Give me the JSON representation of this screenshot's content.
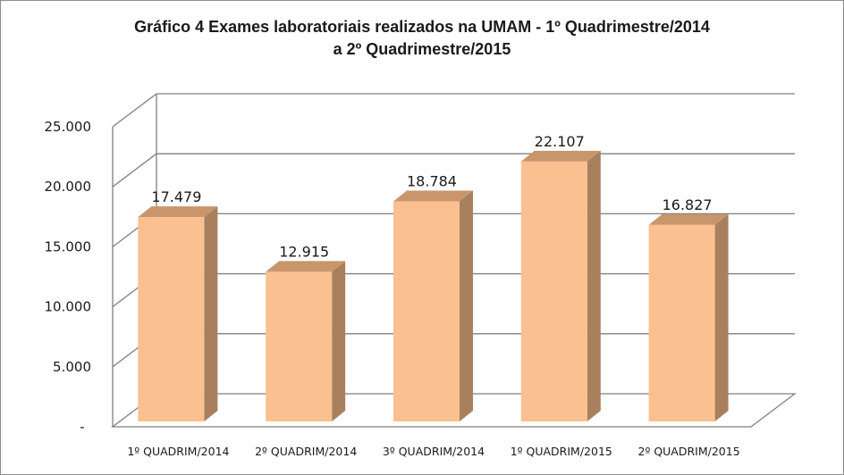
{
  "chart_data": {
    "type": "bar",
    "title_lines": [
      "Gráfico 4 Exames laboratoriais  realizados na UMAM - 1º Quadrimestre/2014",
      "a 2º Quadrimestre/2015"
    ],
    "categories": [
      "1º QUADRIM/2014",
      "2º QUADRIM/2014",
      "3º QUADRIM/2014",
      "1º QUADRIM/2015",
      "2º QUADRIM/2015"
    ],
    "values": [
      17479,
      12915,
      18784,
      22107,
      16827
    ],
    "data_labels": [
      "17.479",
      "12.915",
      "18.784",
      "22.107",
      "16.827"
    ],
    "ylim": [
      0,
      25000
    ],
    "y_ticks": [
      {
        "value": 0,
        "label": "-"
      },
      {
        "value": 5000,
        "label": "5.000"
      },
      {
        "value": 10000,
        "label": "10.000"
      },
      {
        "value": 15000,
        "label": "15.000"
      },
      {
        "value": 20000,
        "label": "20.000"
      },
      {
        "value": 25000,
        "label": "25.000"
      }
    ],
    "grid": true,
    "legend": "none",
    "style": "3d-column",
    "colors": {
      "bar_front": "#fac090",
      "bar_side": "#a8805e",
      "bar_top": "#c9956b",
      "grid": "#7f7f7f"
    }
  }
}
